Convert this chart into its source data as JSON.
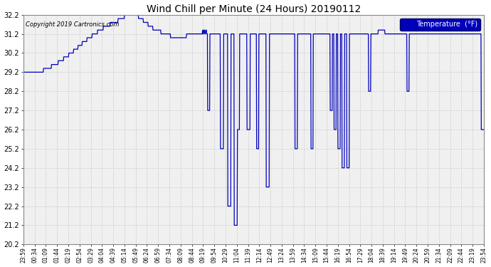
{
  "title": "Wind Chill per Minute (24 Hours) 20190112",
  "copyright": "Copyright 2019 Cartronics.com",
  "legend_label": "Temperature  (°F)",
  "line_color": "#0000bb",
  "legend_bg": "#0000bb",
  "legend_text_color": "#ffffff",
  "bg_color": "#ffffff",
  "plot_bg_color": "#f0f0f0",
  "grid_color": "#cccccc",
  "ylim": [
    20.2,
    32.2
  ],
  "yticks": [
    20.2,
    21.2,
    22.2,
    23.2,
    24.2,
    25.2,
    26.2,
    27.2,
    28.2,
    29.2,
    30.2,
    31.2,
    32.2
  ],
  "xtick_labels": [
    "23:59",
    "00:34",
    "01:09",
    "01:44",
    "02:19",
    "02:54",
    "03:29",
    "04:04",
    "04:39",
    "05:14",
    "05:49",
    "06:24",
    "06:59",
    "07:34",
    "08:09",
    "08:44",
    "09:19",
    "09:54",
    "10:29",
    "11:04",
    "11:39",
    "12:14",
    "12:49",
    "13:24",
    "13:59",
    "14:34",
    "15:09",
    "15:44",
    "16:19",
    "16:54",
    "17:29",
    "18:04",
    "18:39",
    "19:14",
    "19:49",
    "20:24",
    "20:59",
    "21:34",
    "22:09",
    "22:44",
    "23:19",
    "23:54"
  ]
}
